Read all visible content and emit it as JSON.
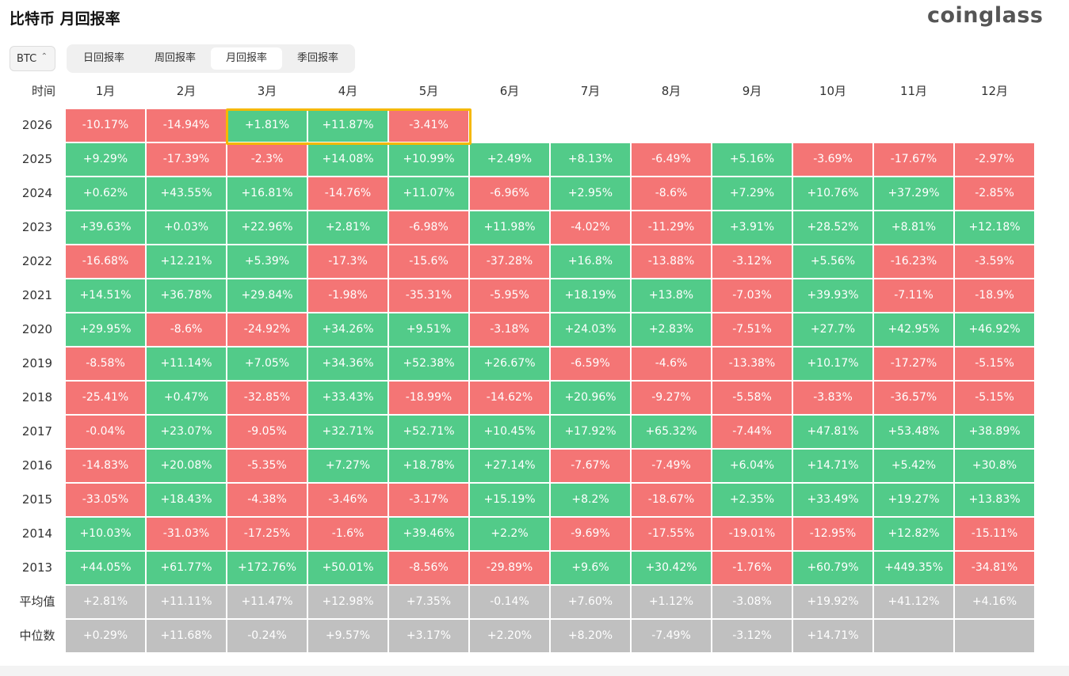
{
  "header": {
    "title": "比特币 月回报率",
    "logo": "coinglass"
  },
  "controls": {
    "coin": "BTC",
    "tabs": [
      "日回报率",
      "周回报率",
      "月回报率",
      "季回报率"
    ]
  },
  "table": {
    "columns": [
      "时间",
      "1月",
      "2月",
      "3月",
      "4月",
      "5月",
      "6月",
      "7月",
      "8月",
      "9月",
      "10月",
      "11月",
      "12月"
    ],
    "rows": [
      [
        "2026",
        "-10.17%",
        "-14.94%",
        "+1.81%",
        "+11.87%",
        "-3.41%"
      ],
      [
        "2025",
        "+9.29%",
        "-17.39%",
        "-2.3%",
        "+14.08%",
        "+10.99%",
        "+2.49%",
        "+8.13%",
        "-6.49%",
        "+5.16%",
        "-3.69%",
        "-17.67%",
        "-2.97%"
      ],
      [
        "2024",
        "+0.62%",
        "+43.55%",
        "+16.81%",
        "-14.76%",
        "+11.07%",
        "-6.96%",
        "+2.95%",
        "-8.6%",
        "+7.29%",
        "+10.76%",
        "+37.29%",
        "-2.85%"
      ],
      [
        "2023",
        "+39.63%",
        "+0.03%",
        "+22.96%",
        "+2.81%",
        "-6.98%",
        "+11.98%",
        "-4.02%",
        "-11.29%",
        "+3.91%",
        "+28.52%",
        "+8.81%",
        "+12.18%"
      ],
      [
        "2022",
        "-16.68%",
        "+12.21%",
        "+5.39%",
        "-17.3%",
        "-15.6%",
        "-37.28%",
        "+16.8%",
        "-13.88%",
        "-3.12%",
        "+5.56%",
        "-16.23%",
        "-3.59%"
      ],
      [
        "2021",
        "+14.51%",
        "+36.78%",
        "+29.84%",
        "-1.98%",
        "-35.31%",
        "-5.95%",
        "+18.19%",
        "+13.8%",
        "-7.03%",
        "+39.93%",
        "-7.11%",
        "-18.9%"
      ],
      [
        "2020",
        "+29.95%",
        "-8.6%",
        "-24.92%",
        "+34.26%",
        "+9.51%",
        "-3.18%",
        "+24.03%",
        "+2.83%",
        "-7.51%",
        "+27.7%",
        "+42.95%",
        "+46.92%"
      ],
      [
        "2019",
        "-8.58%",
        "+11.14%",
        "+7.05%",
        "+34.36%",
        "+52.38%",
        "+26.67%",
        "-6.59%",
        "-4.6%",
        "-13.38%",
        "+10.17%",
        "-17.27%",
        "-5.15%"
      ],
      [
        "2018",
        "-25.41%",
        "+0.47%",
        "-32.85%",
        "+33.43%",
        "-18.99%",
        "-14.62%",
        "+20.96%",
        "-9.27%",
        "-5.58%",
        "-3.83%",
        "-36.57%",
        "-5.15%"
      ],
      [
        "2017",
        "-0.04%",
        "+23.07%",
        "-9.05%",
        "+32.71%",
        "+52.71%",
        "+10.45%",
        "+17.92%",
        "+65.32%",
        "-7.44%",
        "+47.81%",
        "+53.48%",
        "+38.89%"
      ],
      [
        "2016",
        "-14.83%",
        "+20.08%",
        "-5.35%",
        "+7.27%",
        "+18.78%",
        "+27.14%",
        "-7.67%",
        "-7.49%",
        "+6.04%",
        "+14.71%",
        "+5.42%",
        "+30.8%"
      ],
      [
        "2015",
        "-33.05%",
        "+18.43%",
        "-4.38%",
        "-3.46%",
        "-3.17%",
        "+15.19%",
        "+8.2%",
        "-18.67%",
        "+2.35%",
        "+33.49%",
        "+19.27%",
        "+13.83%"
      ],
      [
        "2014",
        "+10.03%",
        "-31.03%",
        "-17.25%",
        "-1.6%",
        "+39.46%",
        "+2.2%",
        "-9.69%",
        "-17.55%",
        "-19.01%",
        "-12.95%",
        "+12.82%",
        "-15.11%"
      ],
      [
        "2013",
        "+44.05%",
        "+61.77%",
        "+172.76%",
        "+50.01%",
        "-8.56%",
        "-29.89%",
        "+9.6%",
        "+30.42%",
        "-1.76%",
        "+60.79%",
        "+449.35%",
        "-34.81%"
      ]
    ],
    "summary_rows": [
      [
        "平均值",
        "+2.81%",
        "+11.11%",
        "+11.47%",
        "+12.98%",
        "+7.35%",
        "-0.14%",
        "+7.60%",
        "+1.12%",
        "-3.08%",
        "+19.92%",
        "+41.12%",
        "+4.16%"
      ],
      [
        "中位数",
        "+0.29%",
        "+11.68%",
        "-0.24%",
        "+9.57%",
        "+3.17%",
        "+2.20%",
        "+8.20%",
        "-7.49%",
        "-3.12%",
        "+14.71%",
        null,
        null
      ]
    ]
  }
}
